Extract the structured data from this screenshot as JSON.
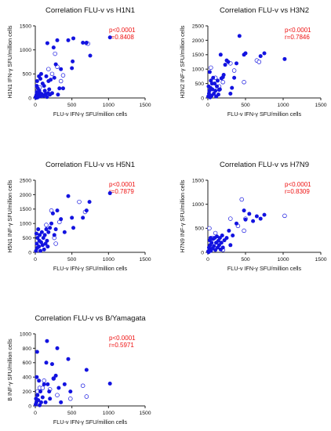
{
  "chart_data": [
    {
      "type": "scatter",
      "title": "Correlation FLU-v vs H1N1",
      "xlabel": "FLU-v IFN-γ SFU/million cells",
      "ylabel": "H1N1 IFN-γ SFU/million cells",
      "xlim": [
        0,
        1500
      ],
      "ylim": [
        0,
        1500
      ],
      "xticks": [
        "0",
        "500",
        "1000",
        "1500"
      ],
      "yticks": [
        "0",
        "500",
        "1000",
        "1500"
      ],
      "stats": [
        "p<0.0001",
        "r=0.8408"
      ],
      "filled": [
        [
          5,
          20
        ],
        [
          10,
          5
        ],
        [
          15,
          60
        ],
        [
          20,
          120
        ],
        [
          20,
          250
        ],
        [
          25,
          350
        ],
        [
          30,
          10
        ],
        [
          35,
          200
        ],
        [
          40,
          80
        ],
        [
          45,
          30
        ],
        [
          50,
          450
        ],
        [
          55,
          150
        ],
        [
          60,
          30
        ],
        [
          70,
          400
        ],
        [
          75,
          90
        ],
        [
          80,
          500
        ],
        [
          90,
          80
        ],
        [
          100,
          300
        ],
        [
          110,
          40
        ],
        [
          120,
          250
        ],
        [
          130,
          150
        ],
        [
          140,
          80
        ],
        [
          150,
          450
        ],
        [
          160,
          20
        ],
        [
          165,
          1140
        ],
        [
          175,
          100
        ],
        [
          180,
          350
        ],
        [
          190,
          180
        ],
        [
          200,
          70
        ],
        [
          210,
          380
        ],
        [
          230,
          100
        ],
        [
          250,
          1050
        ],
        [
          260,
          420
        ],
        [
          280,
          700
        ],
        [
          300,
          1200
        ],
        [
          310,
          70
        ],
        [
          330,
          200
        ],
        [
          350,
          600
        ],
        [
          380,
          200
        ],
        [
          450,
          1200
        ],
        [
          500,
          620
        ],
        [
          510,
          760
        ],
        [
          520,
          1240
        ],
        [
          650,
          1150
        ],
        [
          700,
          1150
        ],
        [
          750,
          880
        ],
        [
          1020,
          1260
        ]
      ],
      "open": [
        [
          30,
          150
        ],
        [
          60,
          220
        ],
        [
          100,
          40
        ],
        [
          180,
          600
        ],
        [
          230,
          500
        ],
        [
          270,
          920
        ],
        [
          300,
          650
        ],
        [
          350,
          350
        ],
        [
          380,
          470
        ],
        [
          700,
          1140
        ],
        [
          720,
          1130
        ]
      ]
    },
    {
      "type": "scatter",
      "title": "Correlation FLU-v vs H3N2",
      "xlabel": "FLU-v IFN-γ SFU/million cells",
      "ylabel": "H3N2 INF-γ SFU/million cells",
      "xlim": [
        0,
        1500
      ],
      "ylim": [
        0,
        2500
      ],
      "xticks": [
        "0",
        "500",
        "1000",
        "1500"
      ],
      "yticks": [
        "0",
        "500",
        "1000",
        "1500",
        "2000",
        "2500"
      ],
      "stats": [
        "p<0.0001",
        "r=0.7846"
      ],
      "filled": [
        [
          5,
          50
        ],
        [
          10,
          400
        ],
        [
          15,
          150
        ],
        [
          20,
          250
        ],
        [
          25,
          900
        ],
        [
          30,
          20
        ],
        [
          35,
          350
        ],
        [
          40,
          600
        ],
        [
          50,
          80
        ],
        [
          55,
          500
        ],
        [
          60,
          300
        ],
        [
          70,
          700
        ],
        [
          80,
          150
        ],
        [
          90,
          500
        ],
        [
          100,
          250
        ],
        [
          110,
          50
        ],
        [
          120,
          400
        ],
        [
          130,
          600
        ],
        [
          140,
          120
        ],
        [
          150,
          280
        ],
        [
          160,
          300
        ],
        [
          170,
          1500
        ],
        [
          180,
          680
        ],
        [
          200,
          720
        ],
        [
          210,
          800
        ],
        [
          230,
          1150
        ],
        [
          250,
          1300
        ],
        [
          270,
          1250
        ],
        [
          300,
          150
        ],
        [
          320,
          350
        ],
        [
          350,
          700
        ],
        [
          380,
          1200
        ],
        [
          420,
          2150
        ],
        [
          480,
          1500
        ],
        [
          500,
          1550
        ],
        [
          700,
          1450
        ],
        [
          750,
          1550
        ],
        [
          1020,
          1350
        ]
      ],
      "open": [
        [
          40,
          1050
        ],
        [
          100,
          700
        ],
        [
          150,
          400
        ],
        [
          200,
          550
        ],
        [
          300,
          1200
        ],
        [
          350,
          950
        ],
        [
          480,
          550
        ],
        [
          650,
          1300
        ],
        [
          680,
          1250
        ]
      ]
    },
    {
      "type": "scatter",
      "title": "Correlation FLU-v vs H5N1",
      "xlabel": "FLU-v IFN-γ SFU/million cells",
      "ylabel": "H5N1 INF-γ SFU/million cells",
      "xlim": [
        0,
        1500
      ],
      "ylim": [
        0,
        2500
      ],
      "xticks": [
        "0",
        "500",
        "1000",
        "1500"
      ],
      "yticks": [
        "0",
        "500",
        "1000",
        "1500",
        "2000",
        "2500"
      ],
      "stats": [
        "p<0.0001",
        "r=0.7879"
      ],
      "filled": [
        [
          10,
          50
        ],
        [
          15,
          650
        ],
        [
          20,
          300
        ],
        [
          25,
          150
        ],
        [
          30,
          500
        ],
        [
          40,
          800
        ],
        [
          50,
          200
        ],
        [
          55,
          400
        ],
        [
          60,
          600
        ],
        [
          70,
          50
        ],
        [
          80,
          350
        ],
        [
          90,
          700
        ],
        [
          100,
          250
        ],
        [
          110,
          500
        ],
        [
          120,
          100
        ],
        [
          130,
          600
        ],
        [
          140,
          300
        ],
        [
          150,
          800
        ],
        [
          160,
          400
        ],
        [
          170,
          200
        ],
        [
          180,
          700
        ],
        [
          200,
          850
        ],
        [
          220,
          1000
        ],
        [
          240,
          1350
        ],
        [
          260,
          600
        ],
        [
          280,
          800
        ],
        [
          300,
          1450
        ],
        [
          350,
          1150
        ],
        [
          400,
          700
        ],
        [
          450,
          1950
        ],
        [
          500,
          1200
        ],
        [
          520,
          850
        ],
        [
          650,
          1200
        ],
        [
          700,
          1450
        ],
        [
          740,
          1750
        ],
        [
          1020,
          2050
        ]
      ],
      "open": [
        [
          150,
          950
        ],
        [
          220,
          1450
        ],
        [
          260,
          500
        ],
        [
          280,
          300
        ],
        [
          330,
          1050
        ],
        [
          600,
          1750
        ],
        [
          680,
          1400
        ]
      ]
    },
    {
      "type": "scatter",
      "title": "Correlation FLU-v vs H7N9",
      "xlabel": "FLU-v IFN-γ SFU/million cells",
      "ylabel": "H7N9 INF-γ SFU/million cells",
      "xlim": [
        0,
        1500
      ],
      "ylim": [
        0,
        1500
      ],
      "xticks": [
        "0",
        "500",
        "1000",
        "1500"
      ],
      "yticks": [
        "0",
        "500",
        "1000",
        "1500"
      ],
      "stats": [
        "p<0.0001",
        "r=0.8309"
      ],
      "filled": [
        [
          5,
          20
        ],
        [
          10,
          5
        ],
        [
          15,
          100
        ],
        [
          20,
          50
        ],
        [
          25,
          250
        ],
        [
          30,
          150
        ],
        [
          35,
          300
        ],
        [
          40,
          30
        ],
        [
          50,
          200
        ],
        [
          60,
          80
        ],
        [
          70,
          280
        ],
        [
          80,
          130
        ],
        [
          90,
          300
        ],
        [
          100,
          50
        ],
        [
          110,
          200
        ],
        [
          120,
          330
        ],
        [
          130,
          100
        ],
        [
          140,
          240
        ],
        [
          150,
          150
        ],
        [
          160,
          300
        ],
        [
          170,
          60
        ],
        [
          180,
          200
        ],
        [
          190,
          350
        ],
        [
          200,
          100
        ],
        [
          220,
          250
        ],
        [
          250,
          300
        ],
        [
          280,
          450
        ],
        [
          300,
          150
        ],
        [
          330,
          350
        ],
        [
          380,
          600
        ],
        [
          480,
          870
        ],
        [
          500,
          680
        ],
        [
          550,
          800
        ],
        [
          600,
          650
        ],
        [
          650,
          750
        ],
        [
          700,
          700
        ],
        [
          750,
          780
        ]
      ],
      "open": [
        [
          20,
          500
        ],
        [
          60,
          300
        ],
        [
          100,
          400
        ],
        [
          200,
          50
        ],
        [
          300,
          700
        ],
        [
          400,
          550
        ],
        [
          450,
          1100
        ],
        [
          480,
          450
        ],
        [
          500,
          700
        ],
        [
          1020,
          760
        ]
      ]
    },
    {
      "type": "scatter",
      "title": "Correlation FLU-v vs B/Yamagata",
      "xlabel": "FLU-v IFN-γ SFU/million cells",
      "ylabel": "B INF-γ SFU/million cells",
      "xlim": [
        0,
        1500
      ],
      "ylim": [
        0,
        1000
      ],
      "xticks": [
        "0",
        "500",
        "1000",
        "1500"
      ],
      "yticks": [
        "0",
        "200",
        "400",
        "600",
        "800",
        "1000"
      ],
      "stats": [
        "p<0.0001",
        "r=0.5971"
      ],
      "filled": [
        [
          5,
          20
        ],
        [
          10,
          100
        ],
        [
          15,
          50
        ],
        [
          20,
          400
        ],
        [
          25,
          750
        ],
        [
          30,
          150
        ],
        [
          40,
          80
        ],
        [
          50,
          350
        ],
        [
          60,
          10
        ],
        [
          70,
          200
        ],
        [
          80,
          50
        ],
        [
          100,
          120
        ],
        [
          120,
          300
        ],
        [
          140,
          50
        ],
        [
          150,
          600
        ],
        [
          160,
          900
        ],
        [
          170,
          300
        ],
        [
          190,
          200
        ],
        [
          200,
          100
        ],
        [
          230,
          580
        ],
        [
          250,
          380
        ],
        [
          280,
          420
        ],
        [
          300,
          800
        ],
        [
          320,
          250
        ],
        [
          350,
          50
        ],
        [
          400,
          300
        ],
        [
          450,
          650
        ],
        [
          480,
          200
        ],
        [
          700,
          500
        ],
        [
          1020,
          310
        ]
      ],
      "open": [
        [
          30,
          200
        ],
        [
          60,
          250
        ],
        [
          100,
          250
        ],
        [
          120,
          350
        ],
        [
          200,
          230
        ],
        [
          250,
          380
        ],
        [
          300,
          150
        ],
        [
          480,
          100
        ],
        [
          650,
          280
        ],
        [
          700,
          130
        ]
      ]
    }
  ],
  "colors": {
    "marker": "#1313e0",
    "stat": "#ee1111",
    "axis": "#222222"
  }
}
